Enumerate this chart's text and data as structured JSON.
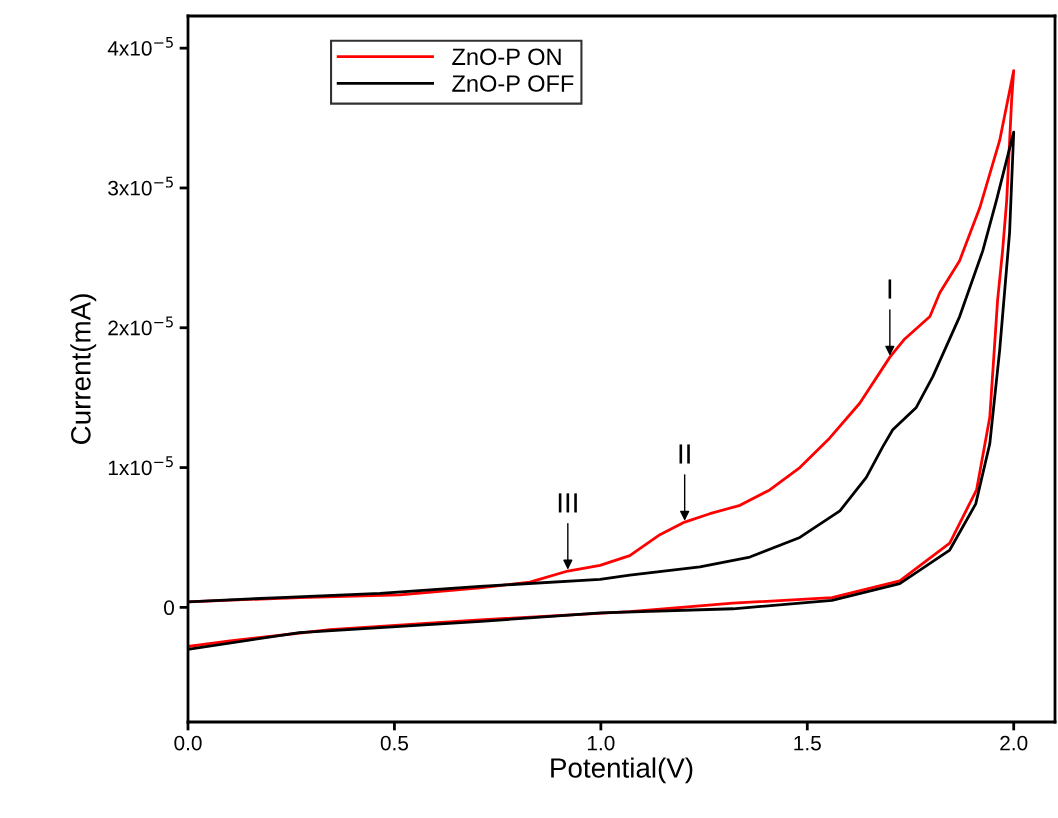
{
  "chart_data": {
    "type": "line",
    "xlabel": "Potential(V)",
    "ylabel": "Current(mA)",
    "xlim": [
      0,
      2.1
    ],
    "xticks": [
      {
        "value": 0,
        "label": "0.0"
      },
      0.5,
      {
        "value": 1,
        "label": "1.0"
      },
      1.5,
      {
        "value": 2,
        "label": "2.0"
      }
    ],
    "ylim": [
      -8.2e-06,
      4.23e-05
    ],
    "yticks": [
      0,
      {
        "value": 1e-05,
        "label": "1x10$^{−5}$"
      },
      {
        "value": 2e-05,
        "label": "2x10$^{−5}$"
      },
      {
        "value": 3e-05,
        "label": "3x10$^{−5}$"
      },
      {
        "value": 4e-05,
        "label": "4x10$^{−5}$"
      }
    ],
    "grid": false,
    "legend": "top left",
    "marker": "none",
    "line_style": "solid",
    "series": [
      {
        "name": "ZnO-P ON",
        "color": "#ff0000",
        "x": [
          0,
          0.102,
          0.344,
          0.707,
          1.07,
          1.32,
          1.56,
          1.724,
          1.845,
          1.91,
          1.942,
          1.961,
          1.973,
          1.983,
          1.995,
          2.0,
          1.966,
          1.918,
          1.869,
          1.821,
          1.797,
          1.736,
          1.7,
          1.627,
          1.554,
          1.482,
          1.409,
          1.337,
          1.264,
          1.203,
          1.143,
          1.07,
          0.998,
          0.92,
          0.828,
          0.707,
          0.513,
          0.271,
          0
        ],
        "values": [
          -2.8e-06,
          -2.4e-06,
          -1.6e-06,
          -9e-07,
          -3e-07,
          3e-07,
          7e-07,
          1.9e-06,
          4.6e-06,
          8.4e-06,
          1.36e-05,
          2.2e-05,
          2.55e-05,
          2.91e-05,
          3.63e-05,
          3.84e-05,
          3.34e-05,
          2.86e-05,
          2.48e-05,
          2.25e-05,
          2.08e-05,
          1.92e-05,
          1.79e-05,
          1.46e-05,
          1.21e-05,
          1e-05,
          8.4e-06,
          7.3e-06,
          6.7e-06,
          6.1e-06,
          5.2e-06,
          3.7e-06,
          3e-06,
          2.6e-06,
          1.8e-06,
          1.4e-06,
          9e-07,
          7e-07,
          4e-07
        ]
      },
      {
        "name": "ZnO-P OFF",
        "color": "#000000",
        "x": [
          0,
          0.27,
          0.71,
          1.0,
          1.32,
          1.56,
          1.724,
          1.845,
          1.908,
          1.942,
          1.966,
          1.99,
          2.0,
          1.958,
          1.925,
          1.869,
          1.804,
          1.764,
          1.707,
          1.683,
          1.643,
          1.579,
          1.482,
          1.361,
          1.24,
          1.07,
          0.998,
          0.707,
          0.465,
          0.223,
          0
        ],
        "values": [
          -3e-06,
          -1.8e-06,
          -1e-06,
          -4e-07,
          -1e-07,
          5e-07,
          1.7e-06,
          4.1e-06,
          7.4e-06,
          1.17e-05,
          1.84e-05,
          2.68e-05,
          3.4e-05,
          2.91e-05,
          2.55e-05,
          2.08e-05,
          1.65e-05,
          1.43e-05,
          1.27e-05,
          1.15e-05,
          9.3e-06,
          6.9e-06,
          5e-06,
          3.6e-06,
          2.9e-06,
          2.3e-06,
          2e-06,
          1.5e-06,
          1e-06,
          7e-07,
          4e-07
        ]
      }
    ],
    "annotations": [
      {
        "text": "I",
        "x": 1.7,
        "y": 1.79e-05
      },
      {
        "text": "II",
        "x": 1.203,
        "y": 6.1e-06
      },
      {
        "text": "III",
        "x": 0.92,
        "y": 2.6e-06
      }
    ]
  }
}
